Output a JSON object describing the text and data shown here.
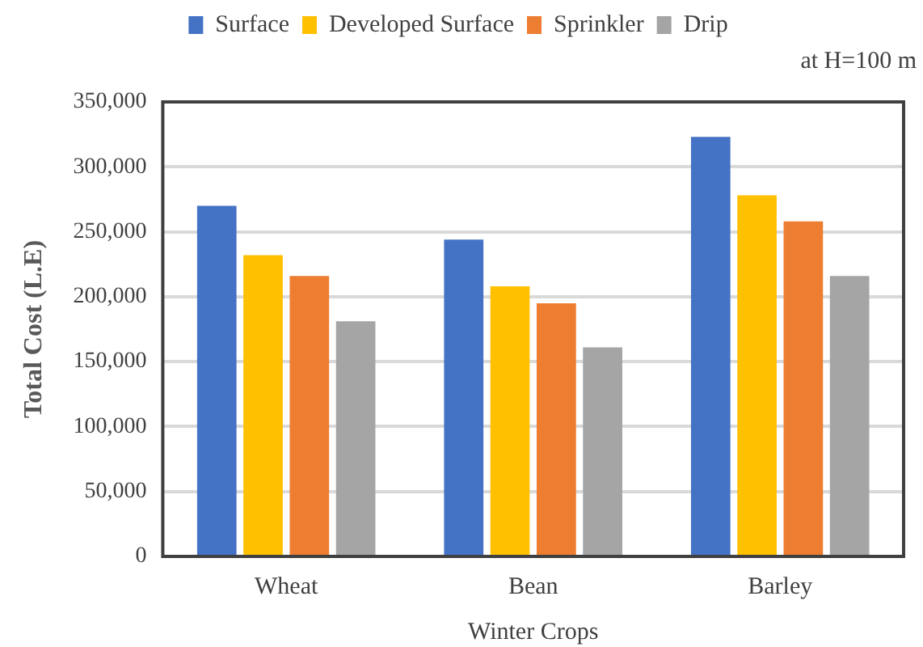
{
  "chart_data": {
    "type": "bar",
    "xlabel": "Winter Crops",
    "ylabel": "Total Cost (L.E)",
    "annotations": [
      "at H=100 m"
    ],
    "categories": [
      "Wheat",
      "Bean",
      "Barley"
    ],
    "series": [
      {
        "name": "Surface",
        "color": "#4472c4",
        "values": [
          270000,
          244000,
          323000
        ]
      },
      {
        "name": "Developed Surface",
        "color": "#ffc000",
        "values": [
          232000,
          208000,
          278000
        ]
      },
      {
        "name": "Sprinkler",
        "color": "#ed7d31",
        "values": [
          216000,
          195000,
          258000
        ]
      },
      {
        "name": "Drip",
        "color": "#a5a5a5",
        "values": [
          181000,
          161000,
          216000
        ]
      }
    ],
    "ylim": [
      0,
      350000
    ],
    "yticks": [
      {
        "value": 0,
        "label": "0"
      },
      {
        "value": 50000,
        "label": "50,000"
      },
      {
        "value": 100000,
        "label": "100,000"
      },
      {
        "value": 150000,
        "label": "150,000"
      },
      {
        "value": 200000,
        "label": "200,000"
      },
      {
        "value": 250000,
        "label": "250,000"
      },
      {
        "value": 300000,
        "label": "300,000"
      },
      {
        "value": 350000,
        "label": "350,000"
      }
    ],
    "grid": "y",
    "legend": "top"
  }
}
